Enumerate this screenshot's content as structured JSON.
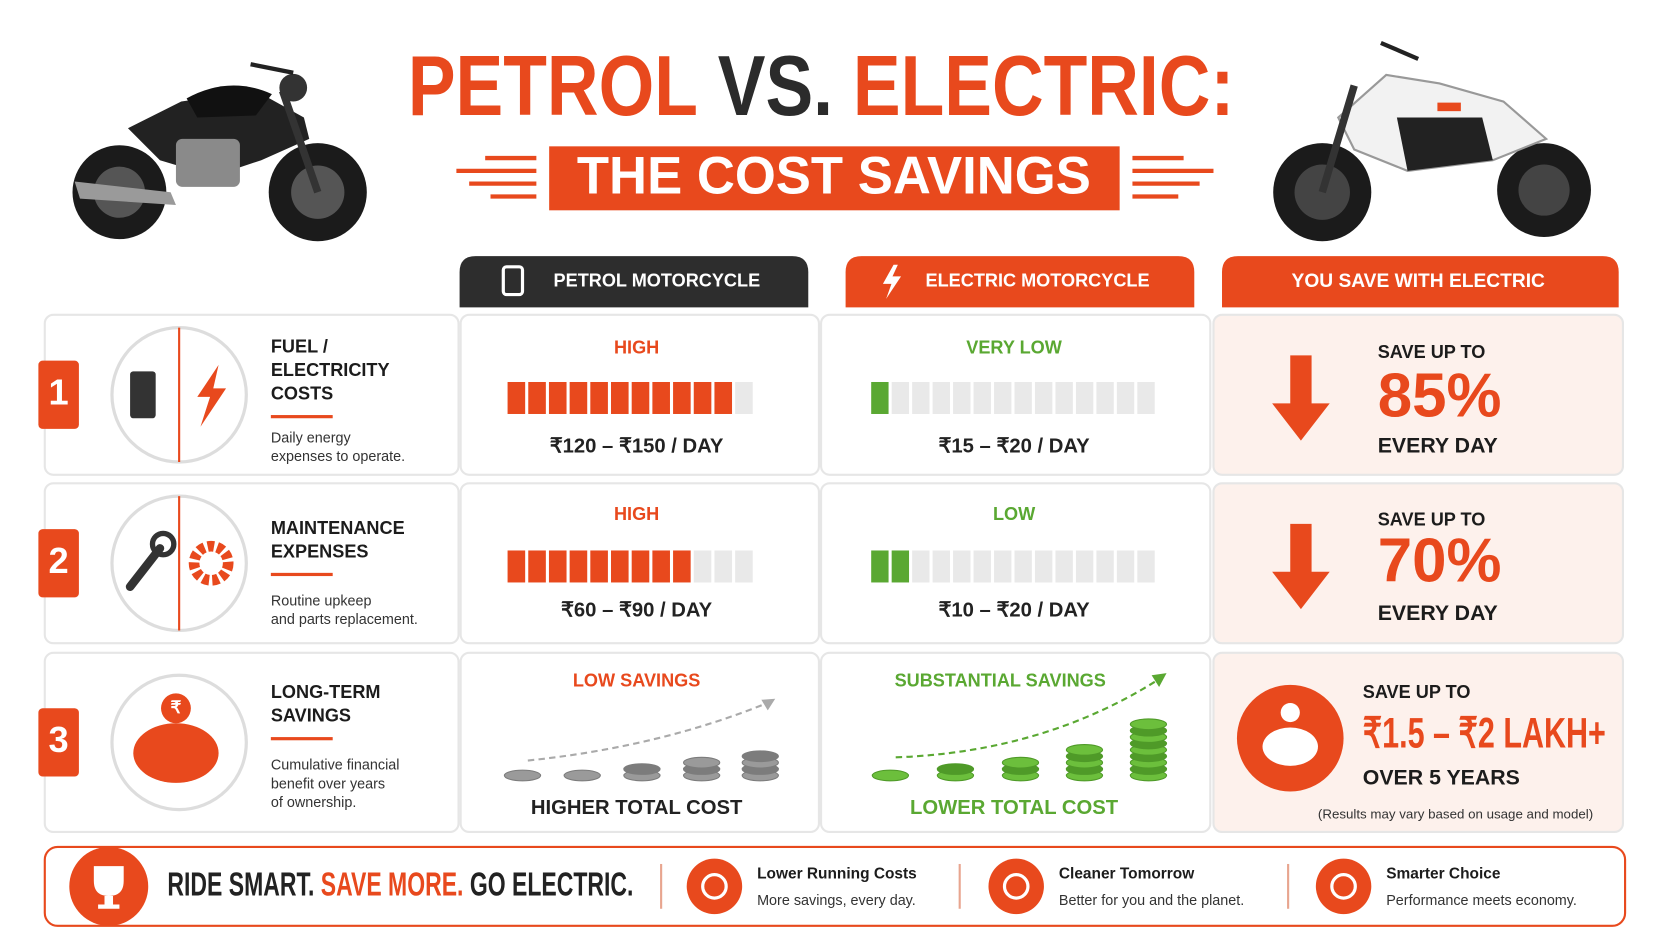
{
  "header": {
    "title": [
      "PETROL",
      "VS.",
      "ELECTRIC:"
    ],
    "subtitle": "THE COST SAVINGS"
  },
  "columns": [
    "PETROL MOTORCYCLE",
    "ELECTRIC MOTORCYCLE",
    "YOU SAVE WITH ELECTRIC"
  ],
  "rows": [
    {
      "number": "1",
      "title": [
        "FUEL /",
        "ELECTRICITY",
        "COSTS"
      ],
      "description": [
        "Daily energy",
        "expenses to operate."
      ],
      "petrol": {
        "level": "HIGH",
        "cost": "₹120 – ₹150 / DAY"
      },
      "electric": {
        "level": "VERY LOW",
        "cost": "₹15 – ₹20 / DAY"
      },
      "savings": {
        "label": "SAVE UP TO",
        "amount": "85%",
        "period": "EVERY DAY"
      }
    },
    {
      "number": "2",
      "title": [
        "MAINTENANCE",
        "EXPENSES"
      ],
      "description": [
        "Routine upkeep",
        "and parts replacement."
      ],
      "petrol": {
        "level": "HIGH",
        "cost": "₹60 – ₹90 / DAY"
      },
      "electric": {
        "level": "LOW",
        "cost": "₹10 – ₹20 / DAY"
      },
      "savings": {
        "label": "SAVE UP TO",
        "amount": "70%",
        "period": "EVERY DAY"
      }
    },
    {
      "number": "3",
      "title": [
        "LONG-TERM",
        "SAVINGS"
      ],
      "description": [
        "Cumulative financial",
        "benefit over years",
        "of ownership."
      ],
      "icon_symbol": "₹",
      "petrol": {
        "level": "LOW SAVINGS",
        "cost": "HIGHER TOTAL COST"
      },
      "electric": {
        "level": "SUBSTANTIAL SAVINGS",
        "cost": "LOWER TOTAL COST"
      },
      "savings": {
        "label": "SAVE UP TO",
        "amount": "₹1.5 – ₹2 LAKH+",
        "period": "OVER 5 YEARS",
        "note": "(Results may vary based on usage and model)"
      }
    }
  ],
  "footer": {
    "slogan": [
      "RIDE SMART.",
      "SAVE MORE.",
      "GO ELECTRIC."
    ],
    "features": [
      {
        "title": "Lower Running Costs",
        "text": "More savings, every day."
      },
      {
        "title": "Cleaner Tomorrow",
        "text": "Better for you and the planet."
      },
      {
        "title": "Smarter Choice",
        "text": "Performance meets economy."
      }
    ]
  }
}
